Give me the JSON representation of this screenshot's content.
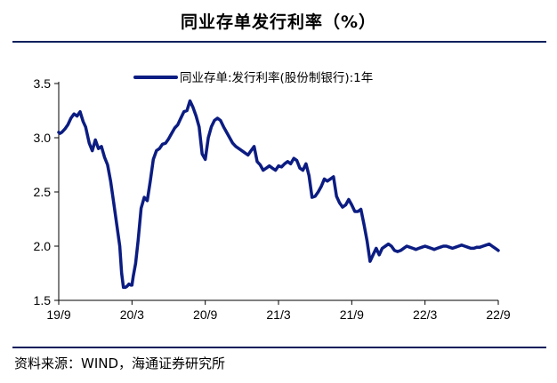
{
  "title": "同业存单发行利率（%）",
  "source": "资料来源：WIND，海通证券研究所",
  "chart_data": {
    "type": "line",
    "title": "同业存单发行利率（%）",
    "xlabel": "",
    "ylabel": "",
    "ylim": [
      1.5,
      3.5
    ],
    "yticks": [
      "1.5",
      "2.0",
      "2.5",
      "3.0",
      "3.5"
    ],
    "xticks": [
      "19/9",
      "20/3",
      "20/9",
      "21/3",
      "21/9",
      "22/3",
      "22/9"
    ],
    "grid": false,
    "legend_position": "top-center",
    "line_color": "#0b1c82",
    "series": [
      {
        "name": "同业存单:发行利率(股份制银行):1年",
        "x": [
          0,
          0.1,
          0.25,
          0.5,
          0.75,
          1.0,
          1.25,
          1.5,
          1.75,
          2.0,
          2.2,
          2.5,
          2.75,
          3.0,
          3.25,
          3.5,
          3.75,
          4.0,
          4.25,
          4.5,
          4.75,
          5.0,
          5.15,
          5.3,
          5.45,
          5.6,
          5.75,
          5.9,
          6.0,
          6.1,
          6.3,
          6.5,
          6.75,
          7.0,
          7.25,
          7.5,
          7.75,
          8.0,
          8.25,
          8.5,
          8.75,
          9.0,
          9.25,
          9.5,
          9.75,
          10.0,
          10.25,
          10.5,
          10.75,
          11.0,
          11.25,
          11.5,
          11.75,
          12.0,
          12.25,
          12.5,
          12.75,
          13.0,
          13.25,
          13.5,
          13.75,
          14.0,
          14.25,
          14.5,
          14.75,
          15.0,
          15.25,
          15.5,
          15.75,
          16.0,
          16.25,
          16.5,
          16.75,
          17.0,
          17.25,
          17.5,
          17.75,
          18.0,
          18.25,
          18.5,
          18.75,
          19.0,
          19.25,
          19.5,
          19.75,
          20.0,
          20.25,
          20.5,
          20.75,
          21.0,
          21.25,
          21.5,
          21.75,
          22.0,
          22.25,
          22.5,
          22.75,
          23.0,
          23.25,
          23.5,
          23.75,
          24.0,
          24.25,
          24.5,
          24.75,
          25.0,
          25.25,
          25.5,
          25.75,
          26.0,
          26.25,
          26.5,
          26.75,
          27.0,
          27.25,
          27.5,
          27.75,
          28.0,
          28.25,
          28.5,
          28.75,
          29.0,
          29.25,
          29.5,
          29.75,
          30.0,
          30.25,
          30.5,
          30.75,
          31.0,
          31.25,
          31.5,
          31.75,
          32.0,
          32.25,
          32.5,
          32.75,
          33.0,
          33.25,
          33.5,
          33.75,
          34.0,
          34.25,
          34.5,
          34.75,
          35.0,
          35.25,
          35.5,
          35.75,
          36.0
        ],
        "values": [
          3.05,
          3.04,
          3.05,
          3.08,
          3.12,
          3.18,
          3.22,
          3.2,
          3.24,
          3.15,
          3.1,
          2.95,
          2.88,
          2.98,
          2.9,
          2.92,
          2.82,
          2.75,
          2.6,
          2.4,
          2.2,
          2.0,
          1.75,
          1.62,
          1.62,
          1.63,
          1.65,
          1.64,
          1.64,
          1.72,
          1.84,
          2.05,
          2.35,
          2.45,
          2.42,
          2.6,
          2.8,
          2.88,
          2.9,
          2.94,
          2.95,
          2.99,
          3.04,
          3.09,
          3.12,
          3.18,
          3.24,
          3.25,
          3.34,
          3.28,
          3.2,
          3.1,
          2.85,
          2.8,
          3.0,
          3.1,
          3.16,
          3.18,
          3.16,
          3.1,
          3.05,
          3.0,
          2.95,
          2.92,
          2.9,
          2.88,
          2.86,
          2.84,
          2.88,
          2.92,
          2.78,
          2.75,
          2.7,
          2.72,
          2.74,
          2.72,
          2.7,
          2.74,
          2.73,
          2.76,
          2.78,
          2.76,
          2.81,
          2.79,
          2.72,
          2.7,
          2.76,
          2.65,
          2.45,
          2.46,
          2.5,
          2.55,
          2.62,
          2.6,
          2.62,
          2.64,
          2.46,
          2.4,
          2.36,
          2.38,
          2.43,
          2.38,
          2.32,
          2.32,
          2.34,
          2.2,
          2.05,
          1.86,
          1.92,
          1.98,
          1.92,
          1.98,
          2.0,
          2.02,
          2.0,
          1.96,
          1.95,
          1.96,
          1.98,
          2.0,
          1.99,
          1.98,
          1.97,
          1.98,
          1.99,
          2.0,
          1.99,
          1.98,
          1.97,
          1.98,
          1.99,
          2.0,
          2.0,
          1.99,
          1.98,
          1.99,
          2.0,
          2.01,
          2.0,
          1.99,
          1.98,
          1.98,
          1.99,
          1.99,
          2.0,
          2.01,
          2.02,
          2.0,
          1.98,
          1.96
        ]
      }
    ]
  }
}
